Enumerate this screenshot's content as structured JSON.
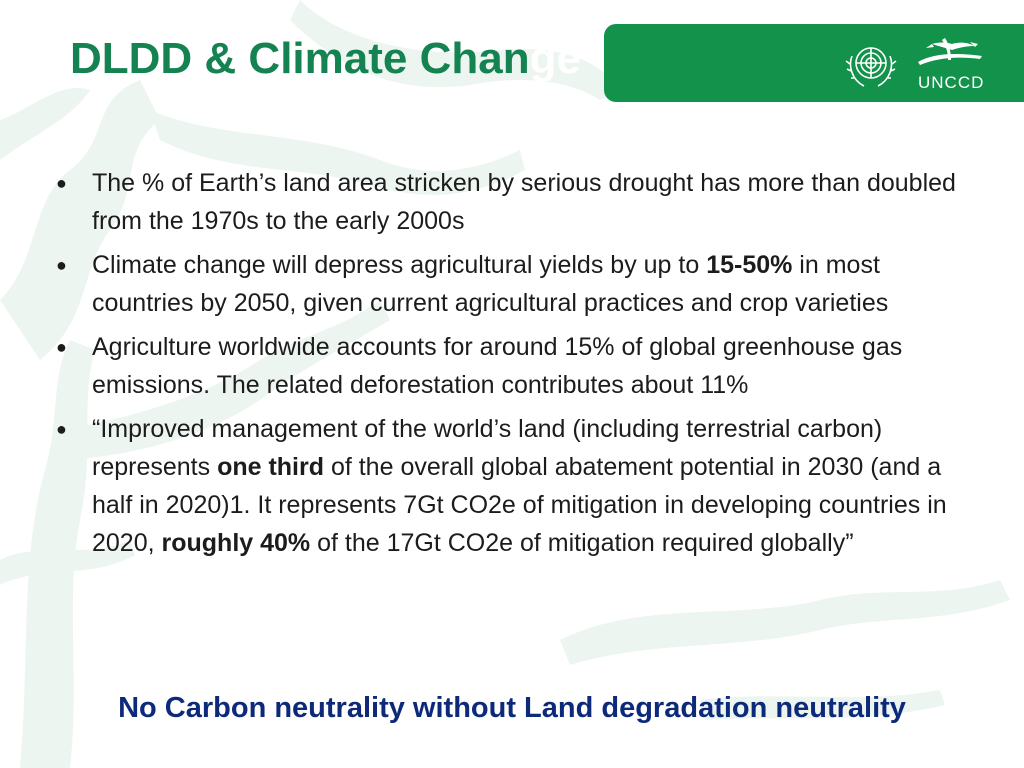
{
  "slide": {
    "title_part1": "DLDD & Climate Chan",
    "title_part2": "ge",
    "logo_text": "UNCCD",
    "bullets": [
      {
        "text1": "The % of Earth’s land area stricken by serious drought has more than doubled from the 1970s to the early 2000s"
      },
      {
        "text1": "Climate change will depress agricultural yields by up to ",
        "bold1": "15-50%",
        "text2": " in most countries by 2050, given current agricultural practices and crop varieties"
      },
      {
        "text1": "Agriculture worldwide accounts for around 15% of global greenhouse gas emissions. The related deforestation contributes about 11%"
      },
      {
        "text1": "“Improved management of the world’s land (including terrestrial carbon) represents ",
        "bold1": "one third",
        "text2": " of the overall global abatement potential in 2030 (and a half in 2020)1. It represents 7Gt CO2e of mitigation in developing countries in 2020, ",
        "bold2": "roughly 40%",
        "text3": " of the 17Gt CO2e of mitigation required globally”"
      }
    ],
    "footer": "No Carbon neutrality without Land degradation neutrality"
  },
  "colors": {
    "title": "#158252",
    "band": "#12924a",
    "footer": "#0d2a7a",
    "background_tree": "#eef5f1"
  }
}
